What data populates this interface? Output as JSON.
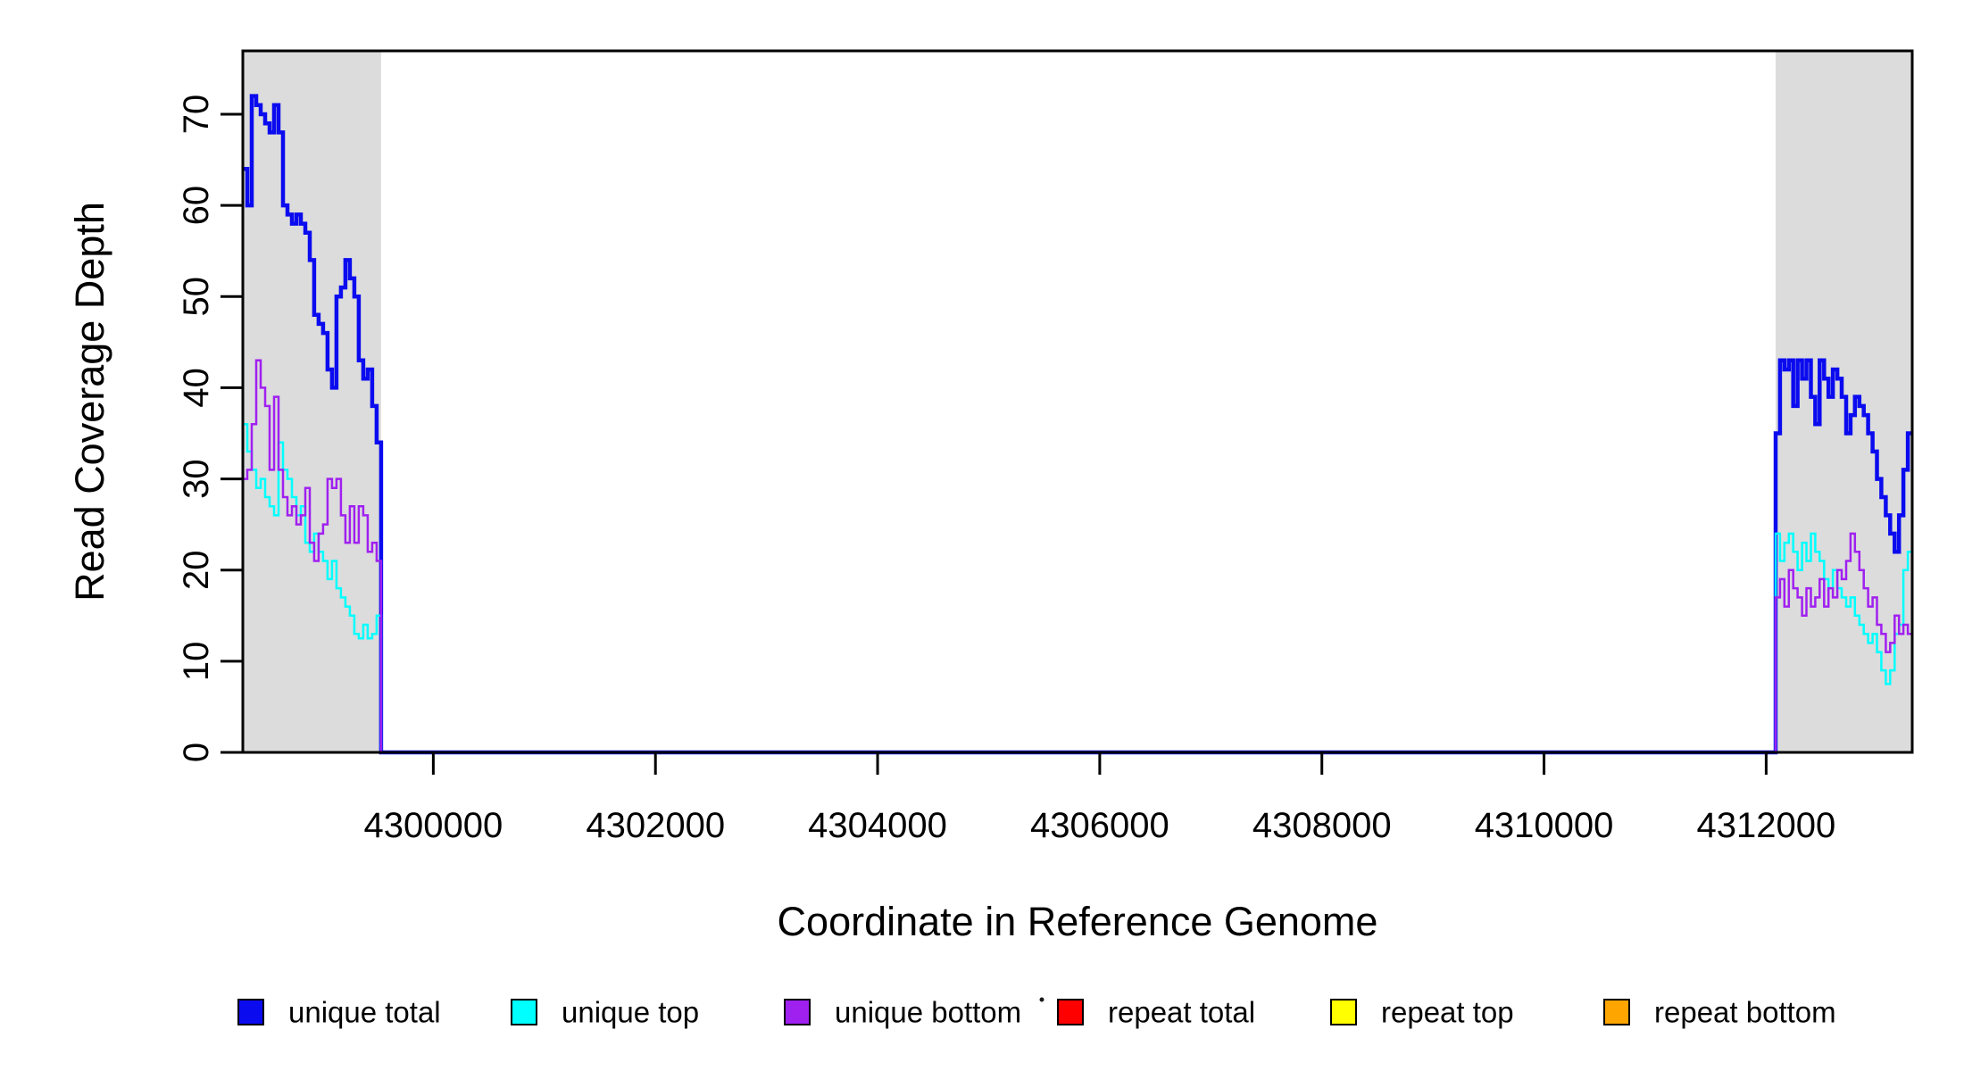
{
  "figure": {
    "background": "#ffffff",
    "shade_color": "#DCDCDC",
    "axis_color": "#000000"
  },
  "chart_data": {
    "type": "line",
    "subtype": "step-coverage",
    "title": "",
    "xlabel": "Coordinate in Reference Genome",
    "ylabel": "Read Coverage Depth",
    "xlim": [
      4298285,
      4313315
    ],
    "ylim": [
      0,
      77
    ],
    "grid": false,
    "x_ticks": [
      4300000,
      4302000,
      4304000,
      4306000,
      4308000,
      4310000,
      4312000
    ],
    "x_tick_labels": [
      "4300000",
      "4302000",
      "4304000",
      "4306000",
      "4308000",
      "4310000",
      "4312000"
    ],
    "y_ticks": [
      0,
      10,
      20,
      30,
      40,
      50,
      60,
      70
    ],
    "y_tick_labels": [
      "0",
      "10",
      "20",
      "30",
      "40",
      "50",
      "60",
      "70"
    ],
    "shaded_regions": [
      {
        "name": "left-unique-flank",
        "x_start": 4298285,
        "x_end": 4299530
      },
      {
        "name": "right-unique-flank",
        "x_start": 4312085,
        "x_end": 4313315
      }
    ],
    "series": [
      {
        "name": "unique total",
        "color": "#0B0BEF",
        "line_width": 4.5,
        "z": 4,
        "regions": [
          {
            "x_start": 4298285,
            "x_end": 4299530,
            "values": [
              64,
              60,
              72,
              71,
              70,
              69,
              68,
              71,
              68,
              60,
              59,
              58,
              59,
              58,
              57,
              54,
              48,
              47,
              46,
              42,
              40,
              50,
              51,
              54,
              52,
              50,
              43,
              41,
              42,
              38,
              34
            ]
          },
          {
            "x_start": 4312085,
            "x_end": 4313315,
            "values": [
              35,
              43,
              42,
              43,
              38,
              43,
              41,
              43,
              39,
              36,
              43,
              41,
              39,
              42,
              41,
              39,
              35,
              37,
              39,
              38,
              37,
              35,
              33,
              30,
              28,
              26,
              24,
              22,
              26,
              31,
              35
            ]
          }
        ]
      },
      {
        "name": "unique top",
        "color": "#00FFFF",
        "line_width": 2.5,
        "z": 5,
        "regions": [
          {
            "x_start": 4298285,
            "x_end": 4299530,
            "values": [
              36,
              33,
              31,
              29,
              30,
              28,
              27,
              26,
              34,
              31,
              30,
              28,
              26,
              27,
              23,
              22,
              24,
              22,
              21,
              19,
              21,
              18,
              17,
              16,
              15,
              13,
              12.5,
              14,
              12.5,
              13,
              15
            ]
          },
          {
            "x_start": 4312085,
            "x_end": 4313315,
            "values": [
              24,
              21,
              23,
              24,
              22,
              20,
              23,
              21,
              24,
              22,
              21,
              19,
              18,
              20,
              18,
              17,
              16,
              17,
              15,
              14,
              13,
              12,
              13,
              11,
              9,
              7.5,
              9,
              13,
              14,
              20,
              22
            ]
          }
        ]
      },
      {
        "name": "unique bottom",
        "color": "#A020F0",
        "line_width": 2.5,
        "z": 6,
        "regions": [
          {
            "x_start": 4298285,
            "x_end": 4299530,
            "values": [
              30,
              31,
              36,
              43,
              40,
              38,
              31,
              39,
              31,
              28,
              26,
              27,
              25,
              26,
              29,
              23,
              21,
              24,
              25,
              30,
              29,
              30,
              26,
              23,
              27,
              23,
              27,
              26,
              22,
              23,
              21
            ]
          },
          {
            "x_start": 4312085,
            "x_end": 4313315,
            "values": [
              17,
              19,
              16,
              20,
              18,
              17,
              15,
              18,
              16,
              17,
              19,
              16,
              18,
              17,
              20,
              19,
              21,
              24,
              22,
              20,
              18,
              16,
              17,
              14,
              13,
              11,
              12,
              15,
              13,
              14,
              13
            ]
          }
        ]
      },
      {
        "name": "repeat total",
        "color": "#FF0000",
        "line_width": 2.5,
        "z": 1,
        "baseline": 0,
        "regions": []
      },
      {
        "name": "repeat top",
        "color": "#FFFF00",
        "line_width": 2.5,
        "z": 2,
        "baseline": 0,
        "regions": []
      },
      {
        "name": "repeat bottom",
        "color": "#FFA500",
        "line_width": 3,
        "z": 3,
        "baseline": 0,
        "regions": []
      }
    ],
    "legend": {
      "position": "bottom",
      "orientation": "horizontal",
      "entries": [
        {
          "label": "unique total",
          "color": "#0B0BEF"
        },
        {
          "label": "unique top",
          "color": "#00FFFF"
        },
        {
          "label": "unique bottom",
          "color": "#A020F0"
        },
        {
          "label": "repeat total",
          "color": "#FF0000"
        },
        {
          "label": "repeat top",
          "color": "#FFFF00"
        },
        {
          "label": "repeat bottom",
          "color": "#FFA500"
        }
      ]
    }
  }
}
